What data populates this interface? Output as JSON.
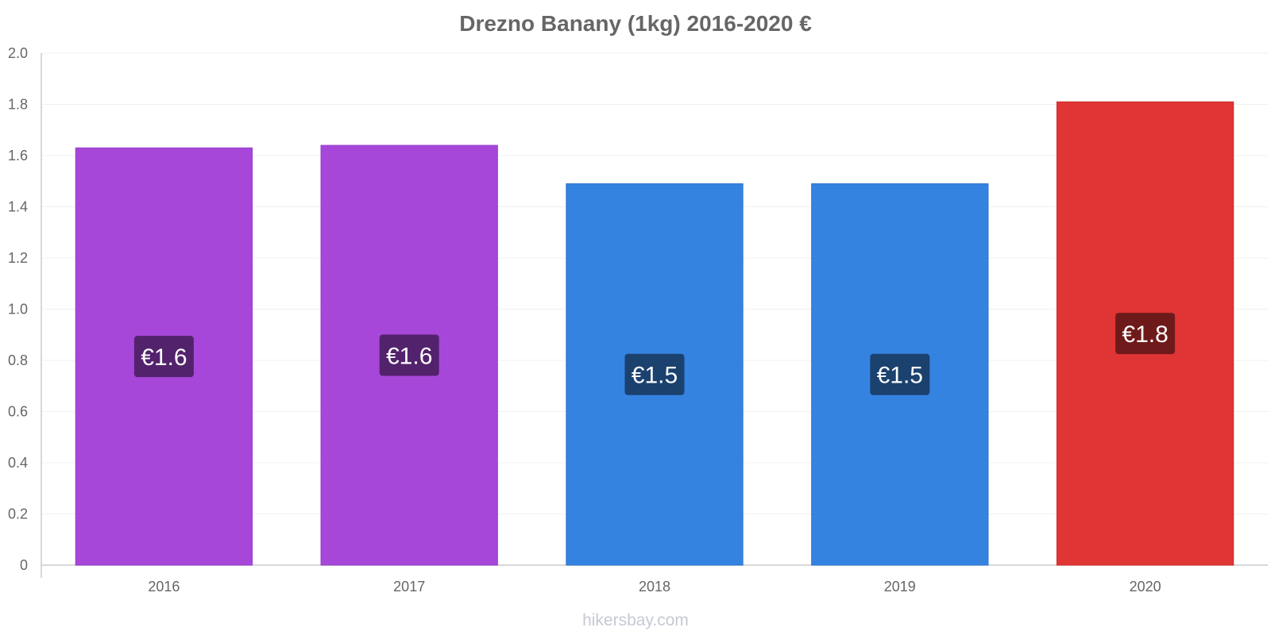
{
  "chart_data": {
    "type": "bar",
    "title": "Drezno Banany (1kg) 2016-2020 €",
    "xlabel": "",
    "ylabel": "",
    "ylim": [
      0,
      2.0
    ],
    "yticks": [
      "0",
      "0.2",
      "0.4",
      "0.6",
      "0.8",
      "1.0",
      "1.2",
      "1.4",
      "1.6",
      "1.8",
      "2.0"
    ],
    "ytick_values": [
      0,
      0.2,
      0.4,
      0.6,
      0.8,
      1.0,
      1.2,
      1.4,
      1.6,
      1.8,
      2.0
    ],
    "grid": true,
    "categories": [
      "2016",
      "2017",
      "2018",
      "2019",
      "2020"
    ],
    "values": [
      1.63,
      1.64,
      1.49,
      1.49,
      1.81
    ],
    "data_labels": [
      "€1.6",
      "€1.6",
      "€1.5",
      "€1.5",
      "€1.8"
    ],
    "bar_colors": [
      "#a647d9",
      "#a647d9",
      "#3583e0",
      "#3583e0",
      "#e03535"
    ],
    "bar_border_colors": [
      "#9a3fcc",
      "#9a3fcc",
      "#2e76cc",
      "#2e76cc",
      "#cc2f2f"
    ],
    "label_bg_colors": [
      "#53226c",
      "#53226c",
      "#1b416f",
      "#1b416f",
      "#6f1a1a"
    ]
  },
  "watermark": "hikersbay.com"
}
